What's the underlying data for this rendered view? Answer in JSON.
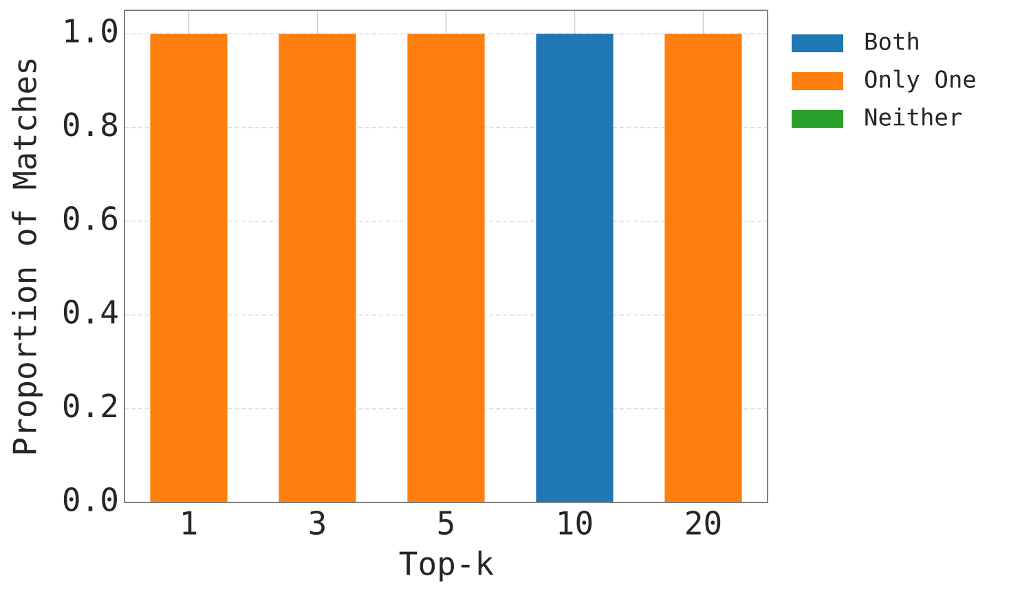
{
  "chart_data": {
    "type": "stacked_bar",
    "xlabel": "Top-k",
    "ylabel": "Proportion of Matches",
    "categories": [
      "1",
      "3",
      "5",
      "10",
      "20"
    ],
    "series": [
      {
        "name": "Both",
        "color": "#1f77b4",
        "values": [
          0,
          0,
          0,
          1,
          0
        ]
      },
      {
        "name": "Only One",
        "color": "#ff7f0e",
        "values": [
          1,
          1,
          1,
          0,
          1
        ]
      },
      {
        "name": "Neither",
        "color": "#2ca02c",
        "values": [
          0,
          0,
          0,
          0,
          0
        ]
      }
    ],
    "ylim": [
      0,
      1.05
    ],
    "yticks": [
      {
        "value": 0,
        "label": "0.0"
      },
      {
        "value": 0.2,
        "label": "0.2"
      },
      {
        "value": 0.4,
        "label": "0.4"
      },
      {
        "value": 0.6,
        "label": "0.6"
      },
      {
        "value": 0.8,
        "label": "0.8"
      },
      {
        "value": 1,
        "label": "1.0"
      }
    ],
    "grid": true,
    "legend": "outside-upper-right"
  }
}
